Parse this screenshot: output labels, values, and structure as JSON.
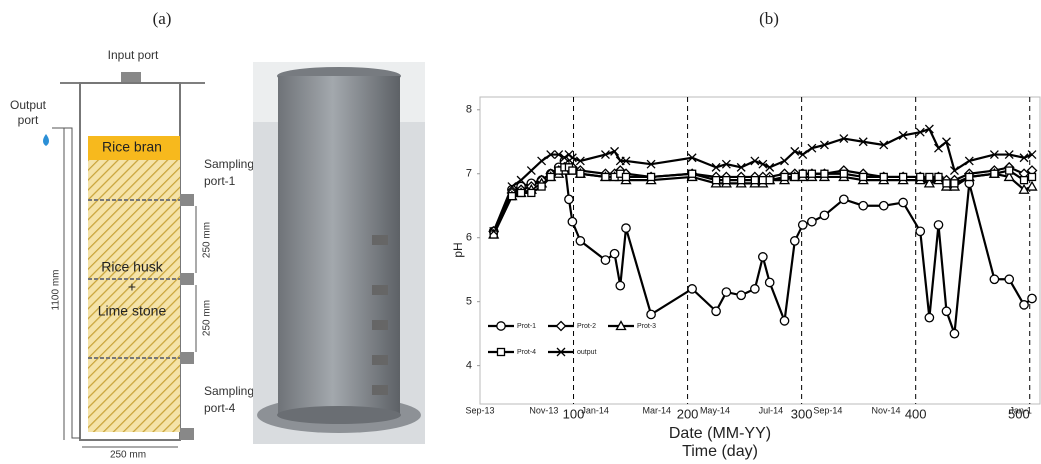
{
  "panels": {
    "a": "(a)",
    "b": "(b)"
  },
  "diagram": {
    "input_port": "Input port",
    "output_port": [
      "Output",
      "port"
    ],
    "rice_bran": "Rice bran",
    "sampling_port_1": [
      "Sampling",
      "port-1"
    ],
    "spacing_1": "250 mm",
    "rice_husk": "Rice husk",
    "plus": "+",
    "lime_stone": "Lime stone",
    "spacing_2": "250 mm",
    "sampling_port_4": [
      "Sampling",
      "port-4"
    ],
    "height": "1100 mm",
    "width": "250 mm"
  },
  "chart_data": {
    "type": "line",
    "ylabel": "pH",
    "x2label": "Date (MM-YY)",
    "xlabel": "Time (day)",
    "x": [
      30,
      46,
      54,
      63,
      72,
      80,
      87,
      92,
      96,
      99,
      106,
      128,
      136,
      141,
      146,
      168,
      204,
      225,
      234,
      247,
      259,
      266,
      272,
      285,
      294,
      301,
      309,
      320,
      337,
      354,
      372,
      389,
      404,
      412,
      420,
      427,
      434,
      447,
      469,
      482,
      495,
      502
    ],
    "series": [
      {
        "name": "Prot-1",
        "color": "#000000",
        "marker": "circle",
        "values": [
          6.1,
          6.75,
          6.8,
          6.85,
          6.9,
          7.0,
          7.1,
          7.2,
          6.6,
          6.25,
          5.95,
          5.65,
          5.75,
          5.25,
          6.15,
          4.8,
          5.2,
          4.85,
          5.15,
          5.1,
          5.2,
          5.7,
          5.3,
          4.7,
          5.95,
          6.2,
          6.25,
          6.35,
          6.6,
          6.5,
          6.5,
          6.55,
          6.1,
          4.75,
          6.2,
          4.85,
          4.5,
          6.85,
          5.35,
          5.35,
          4.95,
          5.05
        ]
      },
      {
        "name": "Prot-2",
        "color": "#000000",
        "marker": "diamond",
        "values": [
          6.1,
          6.7,
          6.75,
          6.8,
          6.9,
          7.0,
          7.05,
          7.1,
          7.15,
          7.1,
          7.05,
          7.0,
          7.0,
          7.05,
          7.0,
          6.95,
          7.0,
          6.95,
          6.95,
          6.95,
          6.95,
          6.95,
          6.95,
          7.0,
          7.0,
          7.0,
          7.0,
          7.0,
          7.05,
          7.0,
          6.95,
          6.95,
          6.95,
          6.9,
          6.95,
          6.9,
          6.9,
          7.0,
          7.05,
          7.1,
          7.0,
          7.05
        ]
      },
      {
        "name": "Prot-3",
        "color": "#000000",
        "marker": "triangle",
        "values": [
          6.05,
          6.65,
          6.7,
          6.75,
          6.85,
          6.95,
          7.0,
          7.05,
          7.1,
          7.05,
          7.0,
          6.95,
          6.95,
          6.95,
          6.9,
          6.9,
          6.95,
          6.85,
          6.85,
          6.85,
          6.85,
          6.85,
          6.9,
          6.9,
          6.95,
          6.95,
          6.95,
          6.95,
          6.95,
          6.9,
          6.9,
          6.9,
          6.9,
          6.85,
          6.9,
          6.8,
          6.8,
          6.95,
          7.0,
          6.95,
          6.75,
          6.8
        ]
      },
      {
        "name": "Prot-4",
        "color": "#000000",
        "marker": "square",
        "values": [
          6.05,
          6.65,
          6.7,
          6.7,
          6.8,
          6.95,
          7.05,
          7.1,
          7.1,
          7.05,
          7.0,
          6.95,
          6.95,
          7.0,
          6.95,
          6.95,
          7.0,
          6.9,
          6.9,
          6.9,
          6.9,
          6.9,
          6.9,
          6.95,
          6.95,
          7.0,
          7.0,
          7.0,
          7.0,
          6.95,
          6.95,
          6.95,
          6.95,
          6.95,
          6.95,
          6.85,
          6.85,
          6.95,
          7.0,
          7.05,
          6.9,
          6.95
        ]
      },
      {
        "name": "output",
        "color": "#000000",
        "marker": "cross",
        "values": [
          6.1,
          6.8,
          6.9,
          7.05,
          7.2,
          7.3,
          7.3,
          7.25,
          7.3,
          7.25,
          7.2,
          7.3,
          7.35,
          7.2,
          7.2,
          7.15,
          7.25,
          7.1,
          7.15,
          7.1,
          7.2,
          7.15,
          7.1,
          7.2,
          7.35,
          7.3,
          7.4,
          7.45,
          7.55,
          7.5,
          7.45,
          7.6,
          7.65,
          7.7,
          7.4,
          7.5,
          7.05,
          7.2,
          7.3,
          7.3,
          7.25,
          7.3
        ]
      }
    ],
    "xlim": [
      18,
      509
    ],
    "ylim": [
      3.4,
      8.2
    ],
    "xticks": [
      100,
      200,
      300,
      400,
      500
    ],
    "yticks": [
      4,
      5,
      6,
      7,
      8
    ],
    "x2ticks": [
      {
        "value": 16,
        "label": "Sep-13"
      },
      {
        "value": 74,
        "label": "Nov-13"
      },
      {
        "value": 119,
        "label": "Jan-14"
      },
      {
        "value": 173,
        "label": "Mar-14"
      },
      {
        "value": 224,
        "label": "May-14"
      },
      {
        "value": 273,
        "label": "Jul-14"
      },
      {
        "value": 323,
        "label": "Sep-14"
      },
      {
        "value": 374,
        "label": "Nov-14"
      },
      {
        "value": 492,
        "label": "Jan-1"
      }
    ],
    "xgrid": "dashed",
    "legend": "lower left"
  }
}
